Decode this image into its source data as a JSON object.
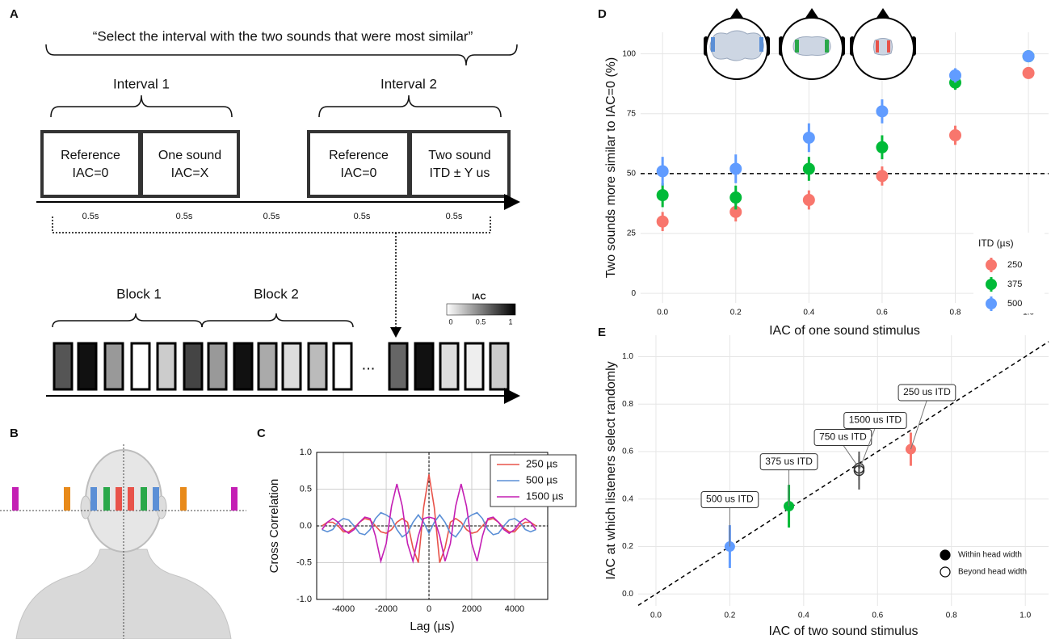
{
  "panel_labels": [
    "A",
    "B",
    "C",
    "D",
    "E"
  ],
  "panel_a": {
    "instruction": "“Select the interval with the two sounds that were most similar”",
    "intervals": [
      {
        "title": "Interval 1",
        "boxes": [
          [
            "Reference",
            "IAC=0"
          ],
          [
            "One sound",
            "IAC=X"
          ]
        ]
      },
      {
        "title": "Interval 2",
        "boxes": [
          [
            "Reference",
            "IAC=0"
          ],
          [
            "Two sound",
            "ITD ± Y us"
          ]
        ]
      }
    ],
    "durations": [
      "0.5s",
      "0.5s",
      "0.5s",
      "0.5s",
      "0.5s"
    ],
    "blocks": [
      "Block 1",
      "Block 2"
    ],
    "ellipsis": "...",
    "colorbar": {
      "title": "IAC",
      "labels": [
        "0",
        "0.5",
        "1"
      ]
    }
  },
  "chart_data": [
    {
      "type": "line",
      "xlabel": "Lag (µs)",
      "ylabel": "Cross Correlation",
      "x": [
        -5000,
        -4750,
        -4500,
        -4250,
        -4000,
        -3750,
        -3500,
        -3250,
        -3000,
        -2750,
        -2500,
        -2250,
        -2000,
        -1750,
        -1500,
        -1250,
        -1000,
        -750,
        -500,
        -250,
        0,
        250,
        500,
        750,
        1000,
        1250,
        1500,
        1750,
        2000,
        2250,
        2500,
        2750,
        3000,
        3250,
        3500,
        3750,
        4000,
        4250,
        4500,
        4750,
        5000
      ],
      "series": [
        {
          "name": "250 µs",
          "color": "#e8534a",
          "values": [
            0,
            0.05,
            0.05,
            0,
            -0.08,
            -0.08,
            -0.03,
            0.05,
            0.1,
            0.08,
            0,
            -0.08,
            -0.1,
            -0.05,
            0.05,
            0.1,
            0.05,
            -0.3,
            -0.5,
            0.25,
            0.7,
            0.25,
            -0.5,
            -0.3,
            0.05,
            0.1,
            0.05,
            -0.05,
            -0.1,
            -0.08,
            0,
            0.08,
            0.1,
            0.05,
            -0.03,
            -0.08,
            -0.08,
            0,
            0.05,
            0.05,
            0
          ]
        },
        {
          "name": "500 µs",
          "color": "#5b8fd6",
          "values": [
            -0.05,
            -0.08,
            -0.05,
            0.05,
            0.1,
            0.08,
            0,
            -0.1,
            -0.12,
            -0.05,
            0.1,
            0.18,
            0.15,
            0.1,
            -0.05,
            -0.15,
            -0.1,
            0.05,
            0.15,
            0.05,
            -0.1,
            0.05,
            0.15,
            0.05,
            -0.1,
            -0.15,
            -0.05,
            0.1,
            0.15,
            0.18,
            0.1,
            -0.05,
            -0.12,
            -0.1,
            0,
            0.08,
            0.1,
            0.05,
            -0.05,
            -0.08,
            -0.05
          ]
        },
        {
          "name": "1500 µs",
          "color": "#c41fb4",
          "values": [
            -0.05,
            0.05,
            0.1,
            0.05,
            -0.05,
            -0.1,
            -0.05,
            0.05,
            0.12,
            0.1,
            -0.14,
            -0.48,
            -0.24,
            0.27,
            0.57,
            0.27,
            -0.24,
            -0.48,
            -0.14,
            0.1,
            0.12,
            0.1,
            -0.14,
            -0.48,
            -0.24,
            0.27,
            0.57,
            0.27,
            -0.24,
            -0.48,
            -0.14,
            0.1,
            0.12,
            0.05,
            -0.05,
            -0.1,
            -0.05,
            0.05,
            0.1,
            0.05,
            -0.05
          ]
        }
      ],
      "xlim": [
        -5250,
        5550
      ],
      "ylim": [
        -1,
        1
      ],
      "xticks": [
        -4000,
        -2000,
        0,
        2000,
        4000
      ],
      "yticks": [
        {
          "value": -1,
          "label": "-1.0"
        },
        {
          "value": -0.5,
          "label": "-0.5"
        },
        {
          "value": 0,
          "label": "0.0"
        },
        {
          "value": 0.5,
          "label": "0.5"
        },
        {
          "value": 1,
          "label": "1.0"
        }
      ],
      "grid": true,
      "legend": "upper right"
    },
    {
      "type": "scatter",
      "xlabel": "IAC of one sound stimulus",
      "ylabel": "Two sounds more similar to IAC=0 (%)",
      "x": [
        0,
        0.2,
        0.4,
        0.6,
        0.8,
        1.0
      ],
      "series": [
        {
          "name": "250",
          "color": "#F8766D",
          "values": [
            30,
            34,
            39,
            49,
            66,
            92
          ],
          "errors": [
            4,
            4,
            4,
            4,
            4,
            2
          ]
        },
        {
          "name": "375",
          "color": "#00BA38",
          "values": [
            41,
            40,
            52,
            61,
            88,
            99
          ],
          "errors": [
            5,
            5,
            5,
            5,
            3,
            1
          ]
        },
        {
          "name": "500",
          "color": "#619CFF",
          "values": [
            51,
            52,
            65,
            76,
            91,
            99
          ],
          "errors": [
            6,
            6,
            6,
            5,
            3,
            1
          ]
        }
      ],
      "xlim": [
        -0.06,
        1.055
      ],
      "ylim": [
        -4,
        109
      ],
      "xticks": [
        {
          "value": 0,
          "label": "0.0"
        },
        {
          "value": 0.2,
          "label": "0.2"
        },
        {
          "value": 0.4,
          "label": "0.4"
        },
        {
          "value": 0.6,
          "label": "0.6"
        },
        {
          "value": 0.8,
          "label": "0.8"
        },
        {
          "value": 1,
          "label": "1.0"
        }
      ],
      "yticks": [
        0,
        25,
        50,
        75,
        100
      ],
      "grid": true,
      "legend": "lower right",
      "legend_title": "ITD (µs)",
      "reference_line": 50
    },
    {
      "type": "scatter",
      "xlabel": "IAC of two sound stimulus",
      "ylabel": "IAC at which listeners select randomly",
      "series": [
        {
          "name": "Within head width",
          "filled": true,
          "color": "#000000",
          "colors": [
            "#619CFF",
            "#00BA38",
            "#F8766D"
          ],
          "x": [
            0.2,
            0.36,
            0.69
          ],
          "values": [
            0.2,
            0.37,
            0.61
          ],
          "errors": [
            0.09,
            0.09,
            0.07
          ],
          "point_labels": [
            "500 us ITD",
            "375 us ITD",
            "250 us ITD"
          ]
        },
        {
          "name": "Beyond head width",
          "filled": false,
          "color": "#000000",
          "x": [
            0.55,
            0.55
          ],
          "values": [
            0.53,
            0.52
          ],
          "errors": [
            0.05,
            0.08
          ],
          "point_labels": [
            "750 us ITD",
            "1500 us ITD"
          ]
        }
      ],
      "xlim": [
        -0.048,
        1.063
      ],
      "ylim": [
        -0.05,
        1.09
      ],
      "xticks": [
        {
          "value": 0,
          "label": "0.0"
        },
        {
          "value": 0.2,
          "label": "0.2"
        },
        {
          "value": 0.4,
          "label": "0.4"
        },
        {
          "value": 0.6,
          "label": "0.6"
        },
        {
          "value": 0.8,
          "label": "0.8"
        },
        {
          "value": 1,
          "label": "1.0"
        }
      ],
      "yticks": [
        {
          "value": 0,
          "label": "0.0"
        },
        {
          "value": 0.2,
          "label": "0.2"
        },
        {
          "value": 0.4,
          "label": "0.4"
        },
        {
          "value": 0.6,
          "label": "0.6"
        },
        {
          "value": 0.8,
          "label": "0.8"
        },
        {
          "value": 1,
          "label": "1.0"
        }
      ],
      "grid": true,
      "legend": "lower right",
      "diagonal": true
    }
  ]
}
